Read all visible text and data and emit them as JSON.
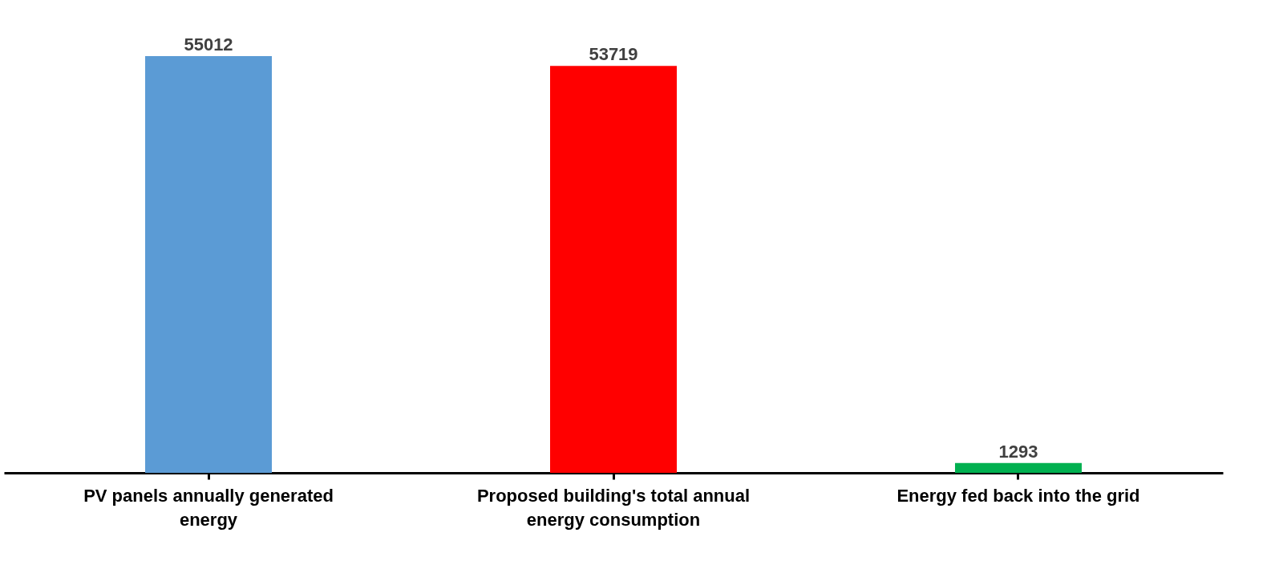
{
  "chart_data": {
    "type": "bar",
    "categories": [
      "PV panels annually generated energy",
      "Proposed building's total annual energy consumption",
      "Energy fed back into the grid"
    ],
    "values": [
      55012,
      53719,
      1293
    ],
    "colors": [
      "#5b9bd5",
      "#ff0000",
      "#00b050"
    ],
    "data_labels": true
  }
}
